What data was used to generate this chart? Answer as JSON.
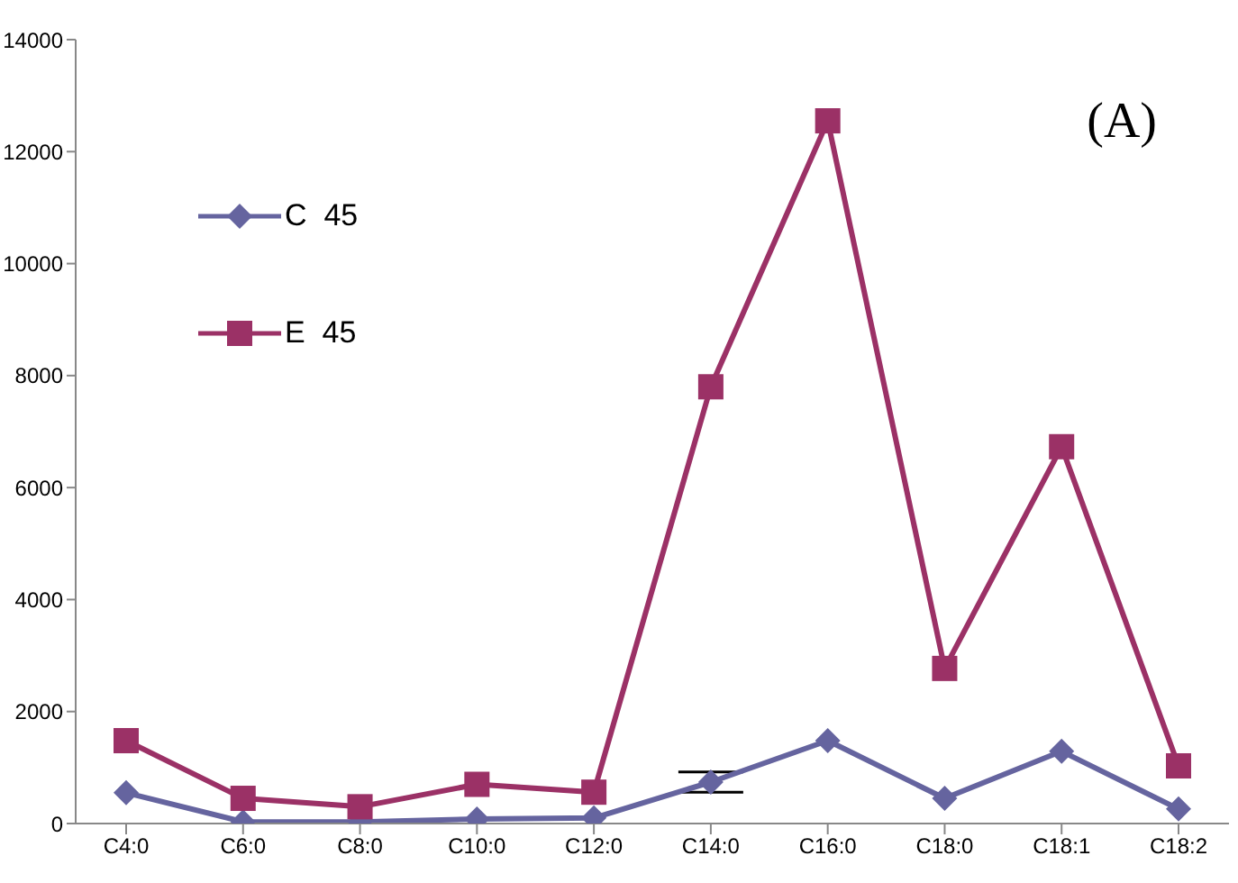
{
  "chart_data": {
    "type": "line",
    "categories": [
      "C4:0",
      "C6:0",
      "C8:0",
      "C10:0",
      "C12:0",
      "C14:0",
      "C16:0",
      "C18:0",
      "C18:1",
      "C18:2"
    ],
    "series": [
      {
        "name": "C  45",
        "color": "#65649f",
        "marker": "diamond",
        "values": [
          550,
          30,
          30,
          80,
          100,
          740,
          1480,
          450,
          1290,
          260
        ],
        "errors": [
          null,
          null,
          null,
          null,
          null,
          180,
          null,
          null,
          null,
          null
        ]
      },
      {
        "name": "E  45",
        "color": "#9b3166",
        "marker": "square",
        "values": [
          1480,
          450,
          300,
          700,
          560,
          7800,
          12550,
          2770,
          6730,
          1030
        ]
      }
    ],
    "ylim": [
      0,
      14000
    ],
    "yticks": [
      0,
      2000,
      4000,
      6000,
      8000,
      10000,
      12000,
      14000
    ],
    "grid": false,
    "legend": "top left",
    "line_style": "solid",
    "annotations": [
      "(A)"
    ]
  }
}
